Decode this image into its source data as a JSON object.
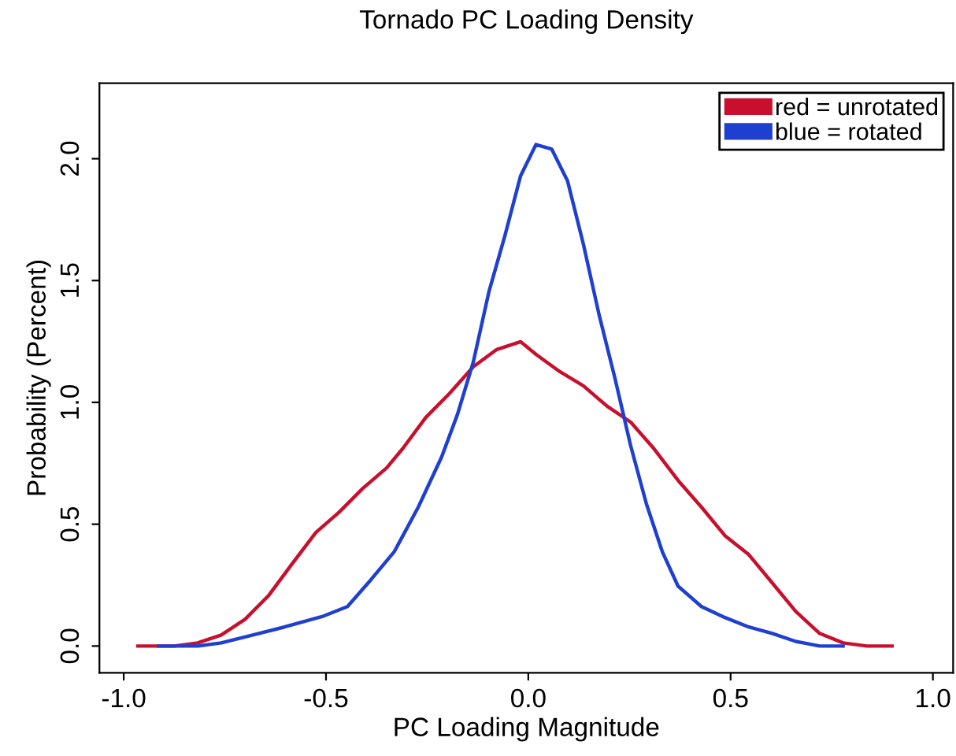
{
  "chart_data": {
    "type": "line",
    "title": "Tornado PC Loading Density",
    "xlabel": "PC Loading Magnitude",
    "ylabel": "Probability (Percent)",
    "xlim": [
      -1.06,
      1.05
    ],
    "ylim": [
      -0.11,
      2.31
    ],
    "xticks": [
      {
        "value": -1.0,
        "label": "-1.0"
      },
      {
        "value": -0.5,
        "label": "-0.5"
      },
      {
        "value": 0.0,
        "label": "0.0"
      },
      {
        "value": 0.5,
        "label": "0.5"
      },
      {
        "value": 1.0,
        "label": "1.0"
      }
    ],
    "yticks": [
      {
        "value": 0.0,
        "label": "0.0"
      },
      {
        "value": 0.5,
        "label": "0.5"
      },
      {
        "value": 1.0,
        "label": "1.0"
      },
      {
        "value": 1.5,
        "label": "1.5"
      },
      {
        "value": 2.0,
        "label": "2.0"
      }
    ],
    "grid": false,
    "legend": "top right",
    "marker": "none",
    "line_style": "solid",
    "series": [
      {
        "name": "red = unrotated",
        "color": "#c8102e",
        "x": [
          -0.965,
          -0.875,
          -0.817,
          -0.759,
          -0.7,
          -0.642,
          -0.584,
          -0.525,
          -0.467,
          -0.409,
          -0.35,
          -0.311,
          -0.253,
          -0.195,
          -0.136,
          -0.078,
          -0.019,
          0.019,
          0.078,
          0.136,
          0.195,
          0.253,
          0.311,
          0.37,
          0.428,
          0.486,
          0.545,
          0.603,
          0.661,
          0.72,
          0.778,
          0.837,
          0.899
        ],
        "values": [
          0,
          0,
          0.013,
          0.045,
          0.11,
          0.207,
          0.337,
          0.466,
          0.55,
          0.647,
          0.731,
          0.809,
          0.939,
          1.036,
          1.146,
          1.217,
          1.249,
          1.197,
          1.126,
          1.068,
          0.984,
          0.919,
          0.809,
          0.68,
          0.57,
          0.453,
          0.375,
          0.259,
          0.142,
          0.052,
          0.013,
          0,
          0
        ]
      },
      {
        "name": "blue = rotated",
        "color": "#1f3fd0",
        "x": [
          -0.914,
          -0.817,
          -0.759,
          -0.681,
          -0.603,
          -0.506,
          -0.447,
          -0.389,
          -0.331,
          -0.272,
          -0.214,
          -0.175,
          -0.136,
          -0.097,
          -0.058,
          -0.019,
          0.019,
          0.058,
          0.097,
          0.136,
          0.175,
          0.214,
          0.253,
          0.292,
          0.331,
          0.37,
          0.428,
          0.486,
          0.545,
          0.603,
          0.661,
          0.72,
          0.778
        ],
        "values": [
          0,
          0,
          0.013,
          0.045,
          0.078,
          0.123,
          0.162,
          0.272,
          0.388,
          0.57,
          0.777,
          0.951,
          1.165,
          1.456,
          1.683,
          1.93,
          2.058,
          2.039,
          1.909,
          1.65,
          1.359,
          1.1,
          0.822,
          0.583,
          0.388,
          0.246,
          0.162,
          0.117,
          0.078,
          0.052,
          0.019,
          0,
          0
        ]
      }
    ]
  }
}
